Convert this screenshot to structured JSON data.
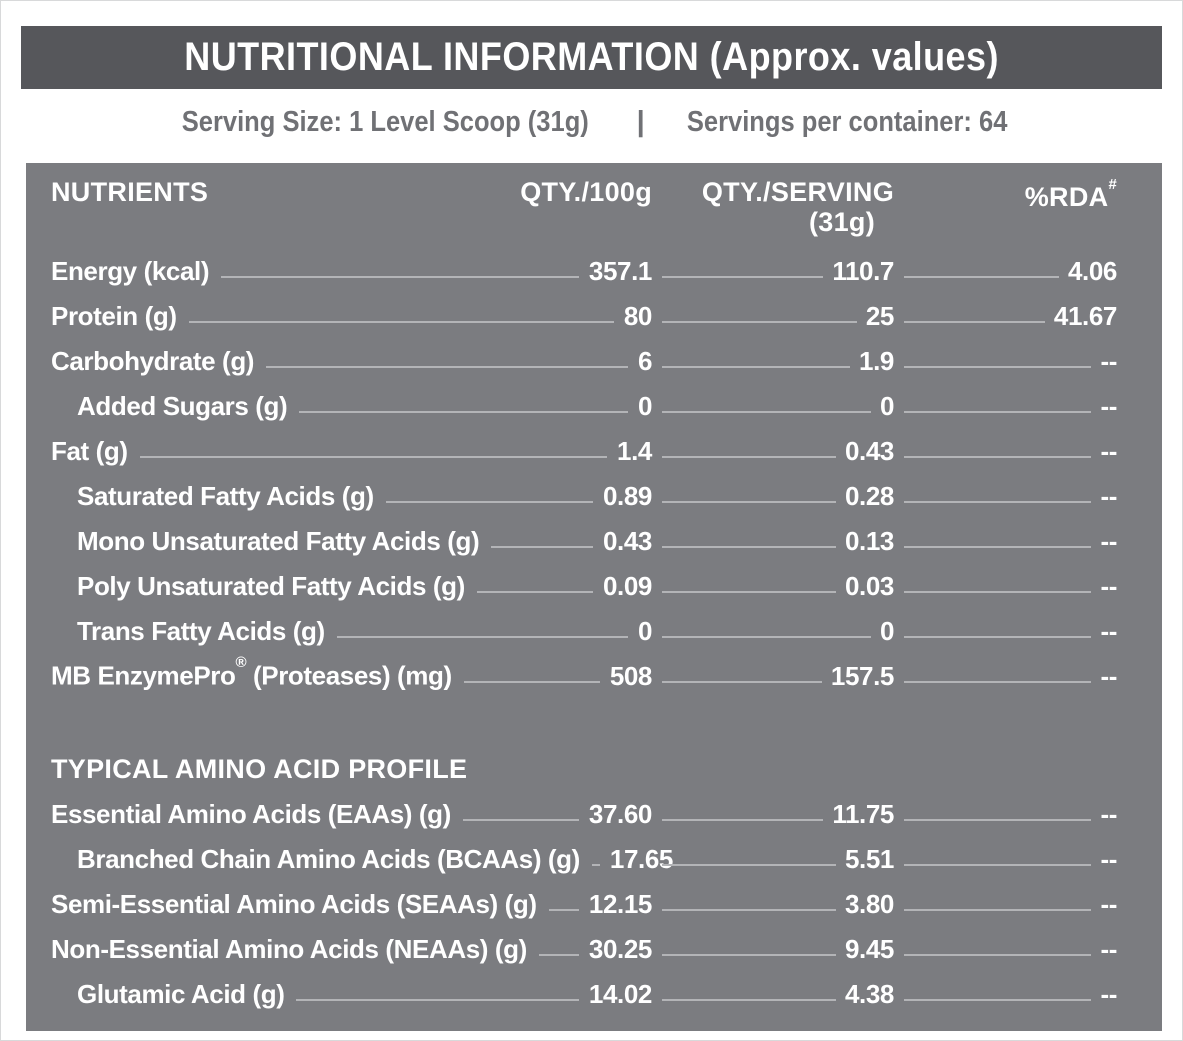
{
  "title_bar": {
    "title": "NUTRITIONAL INFORMATION (Approx. values)"
  },
  "serving_info": {
    "serving_size": "Serving Size: 1 Level Scoop (31g)",
    "separator": "|",
    "servings_per_container": "Servings per container: 64"
  },
  "colors": {
    "title_bar_bg": "#56575b",
    "title_text": "#ffffff",
    "serving_text": "#707175",
    "panel_bg": "#7b7c80",
    "panel_text": "#ffffff",
    "leader_line": "#b3b4b7",
    "page_border": "#d8d9da"
  },
  "table": {
    "header": {
      "nutrients": "NUTRIENTS",
      "per_100g": "QTY./100g",
      "per_serving_line1": "QTY./SERVING",
      "per_serving_line2": "(31g)",
      "rda": "%RDA",
      "rda_sup": "#"
    },
    "sections": [
      {
        "title": "",
        "rows": [
          {
            "label": "Energy (kcal)",
            "sup": "",
            "label_suffix": "",
            "indent": false,
            "per_100g": "357.1",
            "per_serving": "110.7",
            "rda": "4.06"
          },
          {
            "label": "Protein (g)",
            "sup": "",
            "label_suffix": "",
            "indent": false,
            "per_100g": "80",
            "per_serving": "25",
            "rda": "41.67"
          },
          {
            "label": "Carbohydrate (g)",
            "sup": "",
            "label_suffix": "",
            "indent": false,
            "per_100g": "6",
            "per_serving": "1.9",
            "rda": "--"
          },
          {
            "label": "Added Sugars (g)",
            "sup": "",
            "label_suffix": "",
            "indent": true,
            "per_100g": "0",
            "per_serving": "0",
            "rda": "--"
          },
          {
            "label": "Fat (g)",
            "sup": "",
            "label_suffix": "",
            "indent": false,
            "per_100g": "1.4",
            "per_serving": "0.43",
            "rda": "--"
          },
          {
            "label": "Saturated Fatty Acids (g)",
            "sup": "",
            "label_suffix": "",
            "indent": true,
            "per_100g": "0.89",
            "per_serving": "0.28",
            "rda": "--"
          },
          {
            "label": "Mono Unsaturated Fatty Acids (g)",
            "sup": "",
            "label_suffix": "",
            "indent": true,
            "per_100g": "0.43",
            "per_serving": "0.13",
            "rda": "--"
          },
          {
            "label": "Poly Unsaturated Fatty Acids (g)",
            "sup": "",
            "label_suffix": "",
            "indent": true,
            "per_100g": "0.09",
            "per_serving": "0.03",
            "rda": "--"
          },
          {
            "label": "Trans Fatty Acids (g)",
            "sup": "",
            "label_suffix": "",
            "indent": true,
            "per_100g": "0",
            "per_serving": "0",
            "rda": "--"
          },
          {
            "label": "MB EnzymePro",
            "sup": "®",
            "label_suffix": " (Proteases) (mg)",
            "indent": false,
            "per_100g": "508",
            "per_serving": "157.5",
            "rda": "--"
          }
        ]
      },
      {
        "title": "TYPICAL AMINO ACID PROFILE",
        "rows": [
          {
            "label": "Essential Amino Acids (EAAs) (g)",
            "sup": "",
            "label_suffix": "",
            "indent": false,
            "per_100g": "37.60",
            "per_serving": "11.75",
            "rda": "--"
          },
          {
            "label": "Branched Chain Amino Acids (BCAAs) (g)",
            "sup": "",
            "label_suffix": "",
            "indent": true,
            "per_100g": "17.65",
            "per_serving": "5.51",
            "rda": "--"
          },
          {
            "label": "Semi-Essential Amino Acids (SEAAs) (g)",
            "sup": "",
            "label_suffix": "",
            "indent": false,
            "per_100g": "12.15",
            "per_serving": "3.80",
            "rda": "--"
          },
          {
            "label": "Non-Essential Amino Acids (NEAAs) (g)",
            "sup": "",
            "label_suffix": "",
            "indent": false,
            "per_100g": "30.25",
            "per_serving": "9.45",
            "rda": "--"
          },
          {
            "label": "Glutamic Acid (g)",
            "sup": "",
            "label_suffix": "",
            "indent": true,
            "per_100g": "14.02",
            "per_serving": "4.38",
            "rda": "--"
          }
        ]
      }
    ]
  }
}
